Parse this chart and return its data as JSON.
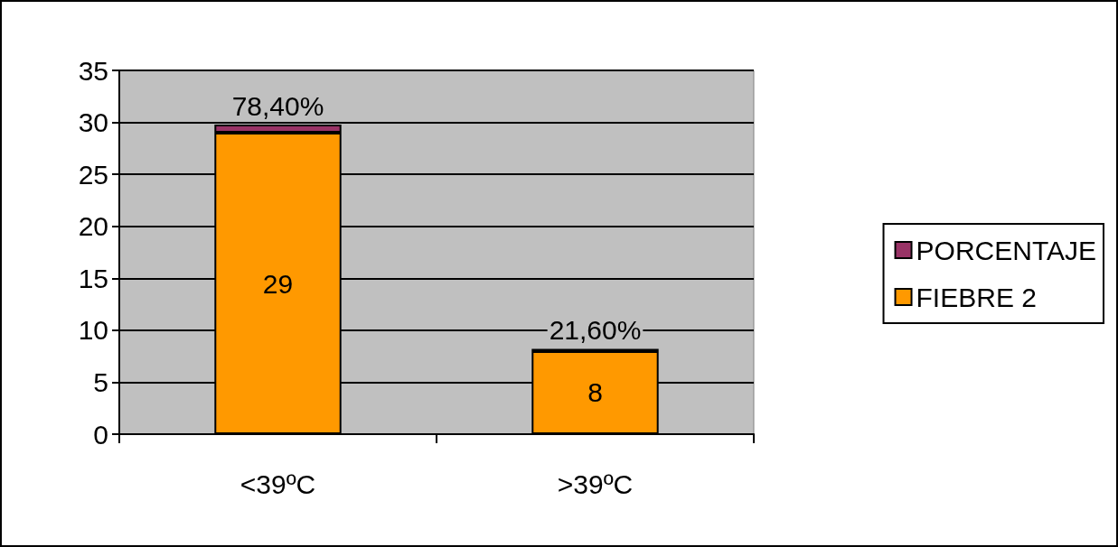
{
  "chart_data": {
    "type": "bar",
    "stacked": true,
    "categories": [
      "<39ºC",
      ">39ºC"
    ],
    "series": [
      {
        "name": "FIEBRE 2",
        "color": "#ff9900",
        "values": [
          29,
          8
        ],
        "value_labels": [
          "29",
          "8"
        ]
      },
      {
        "name": "PORCENTAJE",
        "color": "#993366",
        "values": [
          0.784,
          0.216
        ],
        "value_labels": [
          "78,40%",
          "21,60%"
        ]
      }
    ],
    "ylim": [
      0,
      35
    ],
    "yticks": [
      0,
      5,
      10,
      15,
      20,
      25,
      30,
      35
    ],
    "grid": "y",
    "legend": "right"
  }
}
